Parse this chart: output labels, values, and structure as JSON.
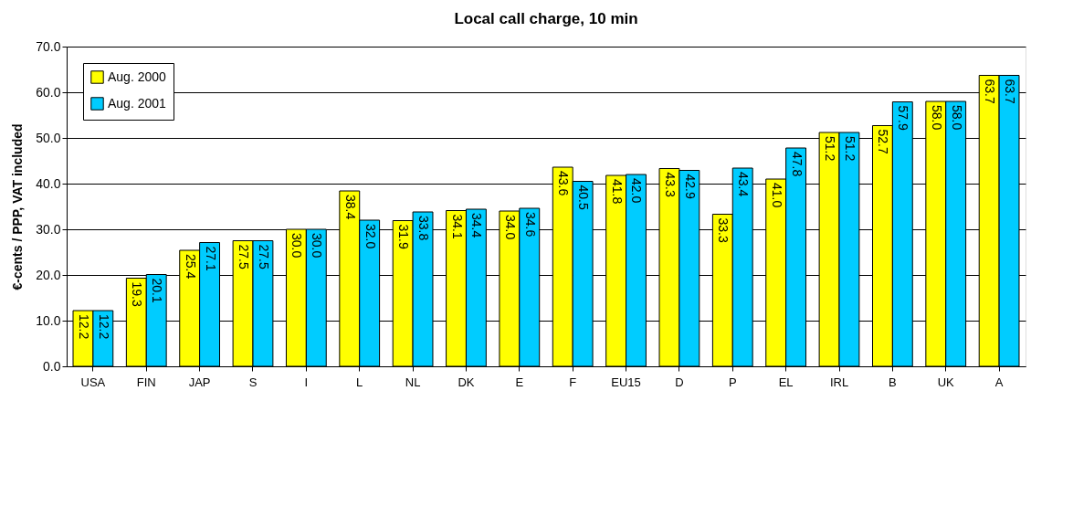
{
  "chart_data": {
    "type": "bar",
    "title": "Local call charge, 10 min",
    "ylabel": "€-cents / PPP, VAT included",
    "categories": [
      "USA",
      "FIN",
      "JAP",
      "S",
      "I",
      "L",
      "NL",
      "DK",
      "E",
      "F",
      "EU15",
      "D",
      "P",
      "EL",
      "IRL",
      "B",
      "UK",
      "A"
    ],
    "series": [
      {
        "name": "Aug. 2000",
        "color": "#ffff00",
        "values": [
          12.2,
          19.3,
          25.4,
          27.5,
          30.0,
          38.4,
          31.9,
          34.1,
          34.0,
          43.6,
          41.8,
          43.3,
          33.3,
          41.0,
          51.2,
          52.7,
          58.0,
          63.7
        ],
        "value_labels": [
          "12.2",
          "19.3",
          "25.4",
          "27.5",
          "30.0",
          "38.4",
          "31.9",
          "34.1",
          "34.0",
          "43.6",
          "41.8",
          "43.3",
          "33.3",
          "41.0",
          "51.2",
          "52.7",
          "58.0",
          "63.7"
        ]
      },
      {
        "name": "Aug. 2001",
        "color": "#00ccff",
        "values": [
          12.2,
          20.1,
          27.1,
          27.5,
          30.0,
          32.0,
          33.8,
          34.4,
          34.6,
          40.5,
          42.0,
          42.9,
          43.4,
          47.8,
          51.2,
          57.9,
          58.0,
          63.7
        ],
        "value_labels": [
          "12.2",
          "20.1",
          "27.1",
          "27.5",
          "30.0",
          "32.0",
          "33.8",
          "34.4",
          "34.6",
          "40.5",
          "42.0",
          "42.9",
          "43.4",
          "47.8",
          "51.2",
          "57.9",
          "58.0",
          "63.7"
        ]
      }
    ],
    "ylim": [
      0,
      70
    ],
    "yticks": [
      {
        "value": 0,
        "label": "0.0"
      },
      {
        "value": 10,
        "label": "10.0"
      },
      {
        "value": 20,
        "label": "20.0"
      },
      {
        "value": 30,
        "label": "30.0"
      },
      {
        "value": 40,
        "label": "40.0"
      },
      {
        "value": 50,
        "label": "50.0"
      },
      {
        "value": 60,
        "label": "60.0"
      },
      {
        "value": 70,
        "label": "70.0"
      }
    ],
    "grid": "y",
    "legend": "top left"
  }
}
